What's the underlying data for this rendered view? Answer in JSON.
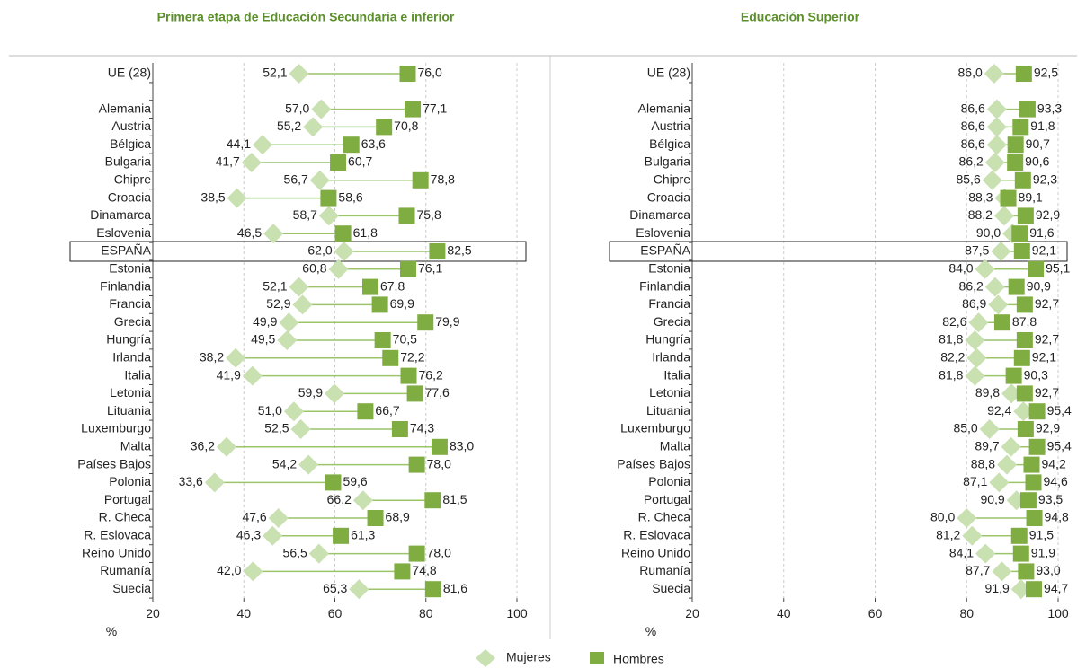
{
  "chart_data": [
    {
      "type": "dumbbell",
      "title": "Primera etapa de Educación Secundaria e inferior",
      "xlabel": "%",
      "categories": [
        "UE (28)",
        null,
        "Alemania",
        "Austria",
        "Bélgica",
        "Bulgaria",
        "Chipre",
        "Croacia",
        "Dinamarca",
        "Eslovenia",
        "ESPAÑA",
        "Estonia",
        "Finlandia",
        "Francia",
        "Grecia",
        "Hungría",
        "Irlanda",
        "Italia",
        "Letonia",
        "Lituania",
        "Luxemburgo",
        "Malta",
        "Países Bajos",
        "Polonia",
        "Portugal",
        "R. Checa",
        "R. Eslovaca",
        "Reino Unido",
        "Rumanía",
        "Suecia"
      ],
      "highlight": 10,
      "series": [
        {
          "name": "Mujeres",
          "color": "#c9e0b1",
          "marker": "diamond",
          "values": [
            52.1,
            null,
            57.0,
            55.2,
            44.1,
            41.7,
            56.7,
            38.5,
            58.7,
            46.5,
            62.0,
            60.8,
            52.1,
            52.9,
            49.9,
            49.5,
            38.2,
            41.9,
            59.9,
            51.0,
            52.5,
            36.2,
            54.2,
            33.6,
            66.2,
            47.6,
            46.3,
            56.5,
            42.0,
            65.3
          ],
          "value_labels": [
            "52,1",
            null,
            "57,0",
            "55,2",
            "44,1",
            "41,7",
            "56,7",
            "38,5",
            "58,7",
            "46,5",
            "62,0",
            "60,8",
            "52,1",
            "52,9",
            "49,9",
            "49,5",
            "38,2",
            "41,9",
            "59,9",
            "51,0",
            "52,5",
            "36,2",
            "54,2",
            "33,6",
            "66,2",
            "47,6",
            "46,3",
            "56,5",
            "42,0",
            "65,3"
          ]
        },
        {
          "name": "Hombres",
          "color": "#80ad42",
          "marker": "square",
          "values": [
            76.0,
            null,
            77.1,
            70.8,
            63.6,
            60.7,
            78.8,
            58.6,
            75.8,
            61.8,
            82.5,
            76.1,
            67.8,
            69.9,
            79.9,
            70.5,
            72.2,
            76.2,
            77.6,
            66.7,
            74.3,
            83.0,
            78.0,
            59.6,
            81.5,
            68.9,
            61.3,
            78.0,
            74.8,
            81.6
          ],
          "value_labels": [
            "76,0",
            null,
            "77,1",
            "70,8",
            "63,6",
            "60,7",
            "78,8",
            "58,6",
            "75,8",
            "61,8",
            "82,5",
            "76,1",
            "67,8",
            "69,9",
            "79,9",
            "70,5",
            "72,2",
            "76,2",
            "77,6",
            "66,7",
            "74,3",
            "83,0",
            "78,0",
            "59,6",
            "81,5",
            "68,9",
            "61,3",
            "78,0",
            "74,8",
            "81,6"
          ]
        }
      ],
      "xlim": [
        20,
        100
      ],
      "xticks": [
        20,
        40,
        60,
        80,
        100
      ],
      "grid": true
    },
    {
      "type": "dumbbell",
      "title": "Educación Superior",
      "xlabel": "%",
      "categories": [
        "UE (28)",
        null,
        "Alemania",
        "Austria",
        "Bélgica",
        "Bulgaria",
        "Chipre",
        "Croacia",
        "Dinamarca",
        "Eslovenia",
        "ESPAÑA",
        "Estonia",
        "Finlandia",
        "Francia",
        "Grecia",
        "Hungría",
        "Irlanda",
        "Italia",
        "Letonia",
        "Lituania",
        "Luxemburgo",
        "Malta",
        "Países Bajos",
        "Polonia",
        "Portugal",
        "R. Checa",
        "R. Eslovaca",
        "Reino Unido",
        "Rumanía",
        "Suecia"
      ],
      "highlight": 10,
      "series": [
        {
          "name": "Mujeres",
          "color": "#c9e0b1",
          "marker": "diamond",
          "values": [
            86.0,
            null,
            86.6,
            86.6,
            86.6,
            86.2,
            85.6,
            88.3,
            88.2,
            90.0,
            87.5,
            84.0,
            86.2,
            86.9,
            82.6,
            81.8,
            82.2,
            81.8,
            89.8,
            92.4,
            85.0,
            89.7,
            88.8,
            87.1,
            90.9,
            80.0,
            81.2,
            84.1,
            87.7,
            91.9
          ],
          "value_labels": [
            "86,0",
            null,
            "86,6",
            "86,6",
            "86,6",
            "86,2",
            "85,6",
            "88,3",
            "88,2",
            "90,0",
            "87,5",
            "84,0",
            "86,2",
            "86,9",
            "82,6",
            "81,8",
            "82,2",
            "81,8",
            "89,8",
            "92,4",
            "85,0",
            "89,7",
            "88,8",
            "87,1",
            "90,9",
            "80,0",
            "81,2",
            "84,1",
            "87,7",
            "91,9"
          ]
        },
        {
          "name": "Hombres",
          "color": "#80ad42",
          "marker": "square",
          "values": [
            92.5,
            null,
            93.3,
            91.8,
            90.7,
            90.6,
            92.3,
            89.1,
            92.9,
            91.6,
            92.1,
            95.1,
            90.9,
            92.7,
            87.8,
            92.7,
            92.1,
            90.3,
            92.7,
            95.4,
            92.9,
            95.4,
            94.2,
            94.6,
            93.5,
            94.8,
            91.5,
            91.9,
            93.0,
            94.7
          ],
          "value_labels": [
            "92,5",
            null,
            "93,3",
            "91,8",
            "90,7",
            "90,6",
            "92,3",
            "89,1",
            "92,9",
            "91,6",
            "92,1",
            "95,1",
            "90,9",
            "92,7",
            "87,8",
            "92,7",
            "92,1",
            "90,3",
            "92,7",
            "95,4",
            "92,9",
            "95,4",
            "94,2",
            "94,6",
            "93,5",
            "94,8",
            "91,5",
            "91,9",
            "93,0",
            "94,7"
          ]
        }
      ],
      "xlim": [
        20,
        100
      ],
      "xticks": [
        20,
        40,
        60,
        80,
        100
      ],
      "grid": true
    }
  ]
}
